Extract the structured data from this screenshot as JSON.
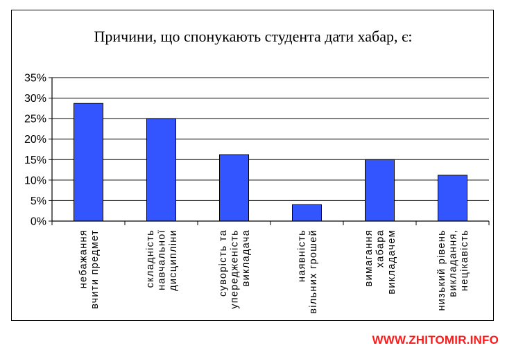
{
  "chart_data": {
    "type": "bar",
    "title": "Причини, що спонукають студента дати хабар, є:",
    "categories": [
      [
        "небажання",
        "вчити предмет"
      ],
      [
        "складність",
        "навчальної",
        "дисципліни"
      ],
      [
        "суворість та",
        "упередженість",
        "викладача"
      ],
      [
        "наявність",
        "вільних грошей"
      ],
      [
        "вимагання",
        "хабара",
        "викладачем"
      ],
      [
        "низький рівень",
        "викладання,",
        "нецікавість"
      ]
    ],
    "values": [
      0.287,
      0.25,
      0.162,
      0.04,
      0.15,
      0.112
    ],
    "ylim": [
      0,
      0.35
    ],
    "yticks": [
      0,
      0.05,
      0.1,
      0.15,
      0.2,
      0.25,
      0.3,
      0.35
    ],
    "ytick_labels": [
      "0%",
      "5%",
      "10%",
      "15%",
      "20%",
      "25%",
      "30%",
      "35%"
    ],
    "xlabel": "",
    "ylabel": "",
    "grid": true,
    "bar_color": "#3355ff",
    "legend": "none"
  },
  "watermark": "WWW.ZHITOMIR.INFO"
}
